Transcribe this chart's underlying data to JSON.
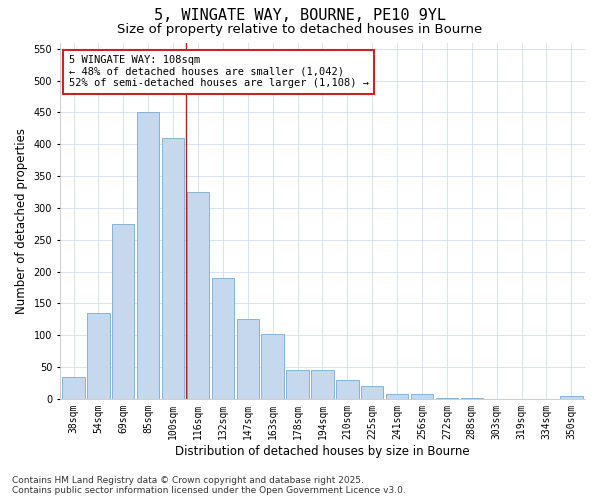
{
  "title_line1": "5, WINGATE WAY, BOURNE, PE10 9YL",
  "title_line2": "Size of property relative to detached houses in Bourne",
  "xlabel": "Distribution of detached houses by size in Bourne",
  "ylabel": "Number of detached properties",
  "categories": [
    "38sqm",
    "54sqm",
    "69sqm",
    "85sqm",
    "100sqm",
    "116sqm",
    "132sqm",
    "147sqm",
    "163sqm",
    "178sqm",
    "194sqm",
    "210sqm",
    "225sqm",
    "241sqm",
    "256sqm",
    "272sqm",
    "288sqm",
    "303sqm",
    "319sqm",
    "334sqm",
    "350sqm"
  ],
  "values": [
    35,
    135,
    275,
    450,
    410,
    325,
    190,
    125,
    102,
    45,
    45,
    30,
    20,
    7,
    7,
    2,
    2,
    0,
    0,
    0,
    5
  ],
  "bar_color": "#c5d8ee",
  "bar_edge_color": "#7aaad0",
  "grid_color": "#d0dff0",
  "bg_color": "#ffffff",
  "vline_x": 4.5,
  "vline_color": "#aa2222",
  "annotation_line1": "5 WINGATE WAY: 108sqm",
  "annotation_line2": "← 48% of detached houses are smaller (1,042)",
  "annotation_line3": "52% of semi-detached houses are larger (1,108) →",
  "annotation_box_color": "#ffffff",
  "annotation_box_edge": "#cc2222",
  "ylim": [
    0,
    560
  ],
  "yticks": [
    0,
    50,
    100,
    150,
    200,
    250,
    300,
    350,
    400,
    450,
    500,
    550
  ],
  "footer": "Contains HM Land Registry data © Crown copyright and database right 2025.\nContains public sector information licensed under the Open Government Licence v3.0.",
  "title_fontsize": 11,
  "subtitle_fontsize": 9.5,
  "axis_label_fontsize": 8.5,
  "tick_fontsize": 7,
  "annotation_fontsize": 7.5,
  "footer_fontsize": 6.5
}
